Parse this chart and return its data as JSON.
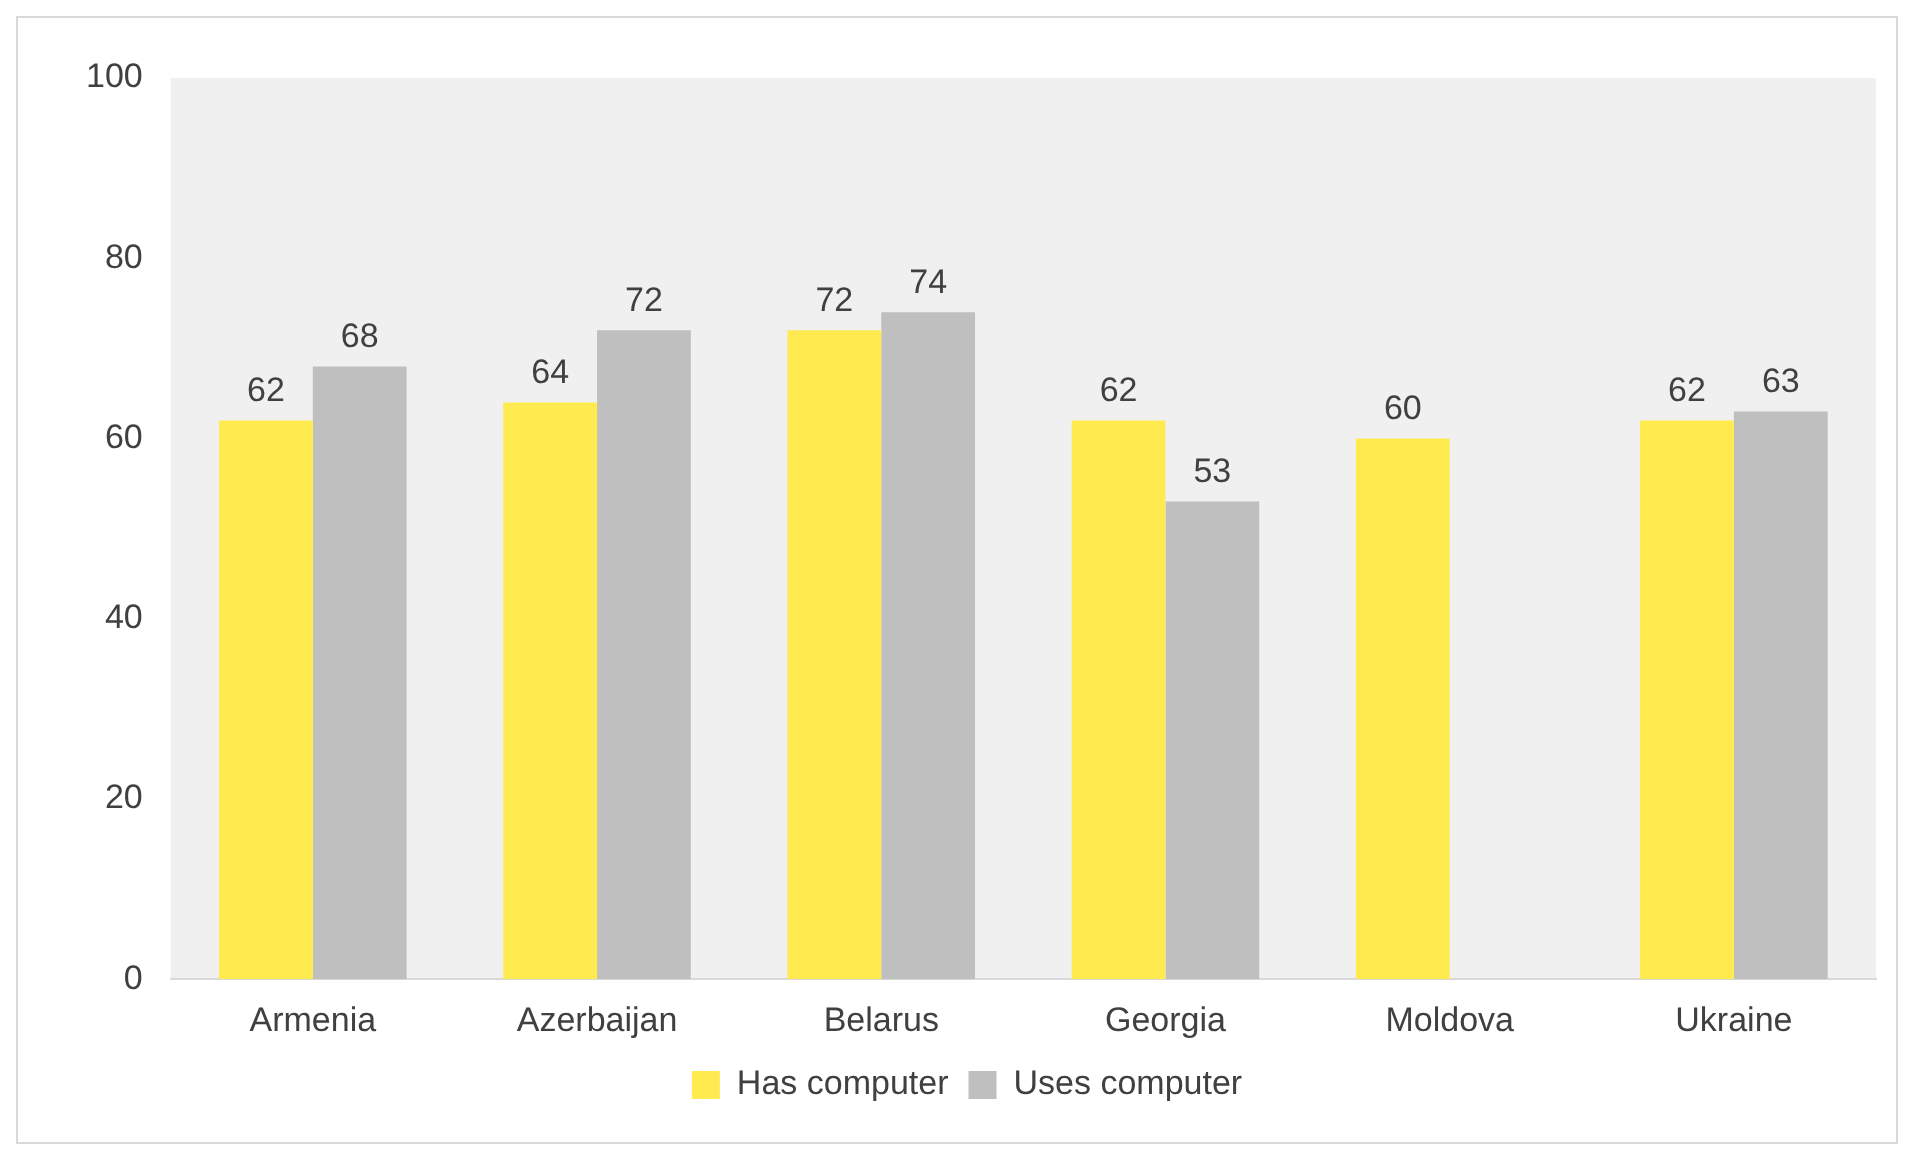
{
  "chart_data": {
    "type": "bar",
    "categories": [
      "Armenia",
      "Azerbaijan",
      "Belarus",
      "Georgia",
      "Moldova",
      "Ukraine"
    ],
    "series": [
      {
        "name": "Has computer",
        "color": "#ffeb4f",
        "values": [
          62,
          64,
          72,
          62,
          60,
          62
        ]
      },
      {
        "name": "Uses computer",
        "color": "#bfbfbf",
        "values": [
          68,
          72,
          74,
          53,
          null,
          63
        ]
      }
    ],
    "ylim": [
      0,
      100
    ],
    "yticks": [
      0,
      20,
      40,
      60,
      80,
      100
    ],
    "data_labels": true,
    "legend": "bottom",
    "grid": false
  }
}
